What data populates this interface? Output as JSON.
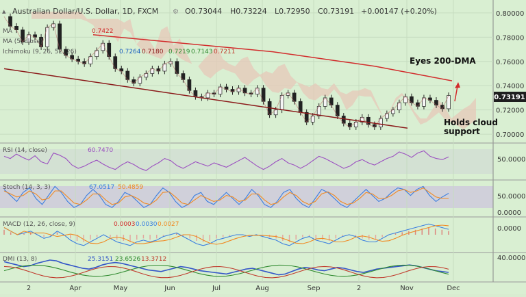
{
  "header": {
    "symbol": "Australian Dollar/U.S. Dollar, 1D, FXCM",
    "open": "O0.73044",
    "high": "H0.73224",
    "low": "L0.72950",
    "close": "C0.73191",
    "change": "+0.00147 (+0.20%)"
  },
  "indicators": {
    "ma1": "MA",
    "ma1_val": "0.7422",
    "ma2": "MA (5, close)",
    "ichimoku": "Ichimoku (9, 26, 52, 26)",
    "ichimoku_vals": [
      "0.7264",
      "0.7180",
      "0.7219",
      "0.7143",
      "0.7211"
    ],
    "rsi": "RSI (14, close)",
    "rsi_val": "60.7470",
    "stoch": "Stoch (14, 3, 3)",
    "stoch_vals": [
      "67.0517",
      "50.4859"
    ],
    "macd": "MACD (12, 26, close, 9)",
    "macd_vals": [
      "0.0003",
      "0.0030",
      "0.0027"
    ],
    "dmi": "DMI (13, 8)",
    "dmi_vals": [
      "25.3151",
      "23.6526",
      "13.3712"
    ]
  },
  "annotations": {
    "eyes": "Eyes 200-DMA",
    "holds1": "Holds cloud",
    "holds2": "support"
  },
  "price_badge": "0.73191",
  "colors": {
    "bg": "#d9efd2",
    "ma200": "#d22c2c",
    "trendline": "#8b1a1a",
    "cloud_red": "#e6c8b8",
    "cloud_green": "#c0dfa8",
    "rsi": "#9b4fc0",
    "stoch_k": "#3a7ee0",
    "stoch_d": "#f08a24",
    "dmi_adx": "#3456c8"
  },
  "chart_data": {
    "type": "line",
    "x_labels": [
      "2",
      "Apr",
      "May",
      "Jun",
      "Jul",
      "Aug",
      "Sep",
      "2",
      "Nov",
      "Dec"
    ],
    "price_axis": [
      "0.80000",
      "0.78000",
      "0.76000",
      "0.74000",
      "0.72000",
      "0.70000"
    ],
    "rsi_axis": [
      "50.0000"
    ],
    "stoch_axis": [
      "50.0000",
      "0.0000"
    ],
    "macd_axis": [
      "0.0000"
    ],
    "dmi_axis": [
      "40.0000"
    ],
    "ylim": [
      0.695,
      0.805
    ],
    "price_series": [
      0.797,
      0.789,
      0.786,
      0.776,
      0.782,
      0.78,
      0.772,
      0.788,
      0.791,
      0.77,
      0.765,
      0.762,
      0.76,
      0.758,
      0.764,
      0.769,
      0.775,
      0.764,
      0.754,
      0.752,
      0.745,
      0.742,
      0.747,
      0.75,
      0.754,
      0.752,
      0.758,
      0.76,
      0.75,
      0.745,
      0.736,
      0.731,
      0.73,
      0.734,
      0.733,
      0.739,
      0.737,
      0.735,
      0.738,
      0.734,
      0.733,
      0.738,
      0.727,
      0.716,
      0.72,
      0.732,
      0.734,
      0.727,
      0.718,
      0.71,
      0.715,
      0.723,
      0.73,
      0.724,
      0.715,
      0.709,
      0.706,
      0.71,
      0.714,
      0.708,
      0.706,
      0.713,
      0.717,
      0.72,
      0.726,
      0.731,
      0.726,
      0.723,
      0.73,
      0.728,
      0.724,
      0.721,
      0.7319
    ],
    "ma200": [
      0.782,
      0.78,
      0.778,
      0.776,
      0.774,
      0.772,
      0.77,
      0.768,
      0.765,
      0.762,
      0.759,
      0.756,
      0.752,
      0.748,
      0.744
    ],
    "trendline": [
      [
        0,
        0.754
      ],
      [
        1,
        0.705
      ]
    ],
    "rsi_series": [
      62,
      58,
      66,
      60,
      55,
      63,
      52,
      48,
      68,
      64,
      58,
      46,
      40,
      44,
      50,
      55,
      48,
      42,
      38,
      46,
      52,
      47,
      40,
      36,
      44,
      50,
      58,
      54,
      45,
      40,
      46,
      52,
      48,
      44,
      50,
      46,
      42,
      48,
      54,
      60,
      52,
      44,
      38,
      44,
      52,
      58,
      50,
      46,
      40,
      46,
      54,
      62,
      58,
      52,
      46,
      40,
      44,
      52,
      56,
      50,
      46,
      52,
      58,
      62,
      70,
      66,
      60,
      68,
      72,
      62,
      58,
      56,
      61
    ],
    "stoch_k": [
      80,
      60,
      40,
      70,
      85,
      50,
      30,
      60,
      90,
      70,
      40,
      20,
      30,
      60,
      80,
      60,
      30,
      20,
      40,
      70,
      60,
      40,
      20,
      30,
      60,
      85,
      70,
      40,
      20,
      30,
      60,
      70,
      40,
      30,
      50,
      70,
      50,
      30,
      50,
      80,
      60,
      30,
      20,
      40,
      70,
      80,
      50,
      30,
      20,
      50,
      80,
      70,
      50,
      30,
      20,
      40,
      60,
      80,
      60,
      40,
      50,
      70,
      85,
      80,
      60,
      80,
      90,
      60,
      40,
      55,
      67
    ],
    "stoch_d": [
      75,
      65,
      55,
      60,
      75,
      65,
      45,
      50,
      75,
      75,
      55,
      35,
      30,
      45,
      65,
      65,
      45,
      30,
      35,
      55,
      60,
      50,
      35,
      30,
      45,
      70,
      72,
      55,
      35,
      30,
      45,
      60,
      50,
      40,
      45,
      60,
      55,
      40,
      45,
      65,
      65,
      45,
      30,
      35,
      55,
      70,
      60,
      40,
      30,
      40,
      65,
      72,
      60,
      40,
      30,
      35,
      50,
      70,
      65,
      50,
      50,
      60,
      75,
      80,
      70,
      75,
      85,
      70,
      55,
      50,
      50
    ],
    "macd_line": [
      0.004,
      0.002,
      0.0,
      0.001,
      0.002,
      0.0,
      -0.002,
      -0.001,
      0.002,
      0.0,
      -0.003,
      -0.005,
      -0.006,
      -0.004,
      -0.002,
      0.0,
      -0.002,
      -0.004,
      -0.005,
      -0.006,
      -0.004,
      -0.003,
      -0.004,
      -0.003,
      -0.001,
      0.0,
      0.001,
      -0.001,
      -0.003,
      -0.005,
      -0.006,
      -0.005,
      -0.003,
      -0.002,
      -0.001,
      0.0,
      0.0,
      -0.001,
      0.0,
      -0.001,
      -0.002,
      -0.003,
      -0.005,
      -0.006,
      -0.004,
      -0.002,
      -0.001,
      -0.003,
      -0.004,
      -0.005,
      -0.003,
      -0.001,
      0.0,
      -0.001,
      -0.003,
      -0.004,
      -0.004,
      -0.002,
      0.0,
      0.001,
      0.002,
      0.003,
      0.004,
      0.005,
      0.006,
      0.005,
      0.004,
      0.003
    ],
    "dmi_adx": [
      38,
      36,
      34,
      32,
      33,
      36,
      38,
      40,
      39,
      36,
      34,
      32,
      30,
      29,
      31,
      34,
      36,
      37,
      36,
      34,
      32,
      30,
      28,
      27,
      26,
      28,
      30,
      32,
      31,
      29,
      27,
      26,
      25,
      24,
      23,
      25,
      27,
      29,
      30,
      28,
      26,
      24,
      22,
      23,
      26,
      29,
      31,
      30,
      28,
      27,
      29,
      31,
      30,
      28,
      26,
      25,
      27,
      29,
      30,
      31,
      32,
      33,
      34,
      33,
      31,
      29,
      27,
      26,
      25
    ]
  }
}
